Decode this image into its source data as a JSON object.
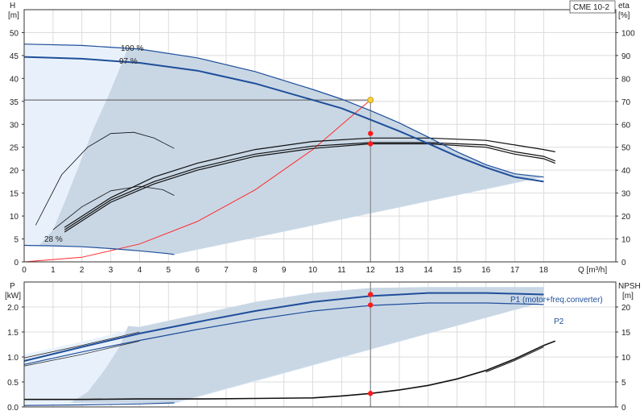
{
  "chart_data": [
    {
      "type": "line",
      "panel": "head",
      "title": "CME 10-2",
      "xlabel": "Q [m³/h]",
      "ylabel_left": "H",
      "ylabel_left_unit": "[m]",
      "ylabel_right": "eta",
      "ylabel_right_unit": "[%]",
      "xlim": [
        0,
        20.5
      ],
      "ylim_left": [
        0,
        55
      ],
      "ylim_right": [
        0,
        110
      ],
      "x_ticks": [
        0,
        1,
        2,
        3,
        4,
        5,
        6,
        7,
        8,
        9,
        10,
        11,
        12,
        13,
        14,
        15,
        16,
        17,
        18
      ],
      "y_ticks_left": [
        0,
        5,
        10,
        15,
        20,
        25,
        30,
        35,
        40,
        45,
        50
      ],
      "y_ticks_right": [
        0,
        10,
        20,
        30,
        40,
        50,
        60,
        70,
        80,
        90,
        100
      ],
      "grid": true,
      "curve_labels": [
        "100 %",
        "97 %",
        "28 %"
      ],
      "series": [
        {
          "name": "100 %",
          "x": [
            0,
            2,
            4,
            6,
            8,
            10,
            11,
            12,
            13,
            14,
            15,
            16,
            17,
            18
          ],
          "y": [
            47.5,
            47.2,
            46.4,
            44.5,
            41.5,
            37.6,
            35.5,
            33,
            30.3,
            27.2,
            24,
            21.2,
            19.2,
            18.5
          ]
        },
        {
          "name": "97 %",
          "x": [
            0,
            2,
            4,
            6,
            8,
            10,
            11,
            12,
            13,
            14,
            15,
            16,
            17,
            18
          ],
          "y": [
            44.7,
            44.3,
            43.4,
            41.7,
            38.9,
            35.3,
            33.5,
            31,
            28.5,
            25.8,
            23,
            20.6,
            18.5,
            17.5
          ]
        },
        {
          "name": "28 %",
          "x": [
            0,
            1,
            2,
            3,
            4,
            5,
            5.2
          ],
          "y": [
            3.6,
            3.5,
            3.3,
            2.9,
            2.4,
            1.8,
            1.6
          ]
        }
      ],
      "system_curve": {
        "x": [
          0,
          2,
          4,
          6,
          8,
          10,
          12
        ],
        "y": [
          0,
          1,
          3.9,
          8.8,
          15.7,
          24.5,
          35.3
        ]
      },
      "eta_curves": [
        {
          "x": [
            0.4,
            1.3,
            2.2,
            3.0,
            3.8,
            4.5,
            5.2
          ],
          "y": [
            16,
            38,
            50,
            56,
            56.5,
            54,
            49.5
          ]
        },
        {
          "x": [
            1,
            2,
            3,
            4,
            4.8,
            5.2
          ],
          "y": [
            14,
            24,
            31,
            33,
            31.5,
            29
          ]
        },
        {
          "x": [
            1.4,
            3,
            4.5,
            6,
            8,
            10,
            12,
            14,
            16,
            17,
            18,
            18.4
          ],
          "y": [
            15,
            28,
            37,
            43,
            49,
            52.5,
            54,
            54,
            53,
            51,
            49,
            48
          ]
        },
        {
          "x": [
            1.4,
            3,
            4.5,
            6,
            8,
            10,
            12,
            14,
            16,
            17,
            18,
            18.4
          ],
          "y": [
            14,
            27,
            35,
            41,
            47,
            50.5,
            52,
            52,
            51,
            48,
            46,
            44
          ]
        },
        {
          "x": [
            1.4,
            3,
            4.5,
            6,
            8,
            10,
            12,
            14,
            16,
            17,
            18,
            18.4
          ],
          "y": [
            13,
            26,
            34,
            40,
            46,
            49.5,
            51.5,
            51.5,
            50,
            47,
            45,
            43
          ]
        }
      ],
      "duty_point": {
        "x": 12,
        "y": 35.3
      },
      "eta_points": [
        {
          "x": 12,
          "y": 56
        },
        {
          "x": 12,
          "y": 51.5
        }
      ]
    },
    {
      "type": "line",
      "panel": "power",
      "xlim": [
        0,
        20.5
      ],
      "ylabel_left": "P",
      "ylabel_left_unit": "[kW]",
      "ylabel_right": "NPSH",
      "ylabel_right_unit": "[m]",
      "ylim_left": [
        0,
        2.5
      ],
      "ylim_right": [
        0,
        25
      ],
      "y_ticks_left": [
        0.0,
        0.5,
        1.0,
        1.5,
        2.0
      ],
      "y_ticks_left_labels": [
        "0.0",
        "0.5",
        "1.0",
        "1.5",
        "2.0"
      ],
      "y_ticks_right": [
        0,
        5,
        10,
        15,
        20
      ],
      "grid": true,
      "series": [
        {
          "name": "P1 (motor+freq.converter)",
          "x": [
            0,
            2,
            4,
            6,
            8,
            10,
            12,
            14,
            16,
            18
          ],
          "y": [
            0.92,
            1.2,
            1.47,
            1.7,
            1.92,
            2.1,
            2.22,
            2.28,
            2.28,
            2.25
          ]
        },
        {
          "name": "P2",
          "x": [
            0,
            2,
            4,
            6,
            8,
            10,
            12,
            14,
            16,
            18
          ],
          "y": [
            0.85,
            1.1,
            1.33,
            1.55,
            1.75,
            1.92,
            2.03,
            2.08,
            2.08,
            2.05
          ]
        }
      ],
      "npsh": {
        "x": [
          0,
          2,
          4,
          6,
          8,
          10,
          11,
          12,
          13,
          14,
          15,
          16,
          17,
          18,
          18.4
        ],
        "y": [
          1.5,
          1.5,
          1.6,
          1.6,
          1.7,
          1.8,
          2.2,
          2.7,
          3.4,
          4.3,
          5.6,
          7.3,
          9.6,
          12.3,
          13.2
        ]
      },
      "power_points": [
        {
          "x": 12,
          "y": 2.25
        },
        {
          "x": 12,
          "y": 2.04
        }
      ],
      "npsh_point": {
        "x": 12,
        "y": 2.7
      }
    }
  ],
  "theme": {
    "envelope_light": "#e8f1fb",
    "envelope_mid": "#c9d7e5",
    "curve_blue": "#1f4e9a",
    "system_red": "#ff2a2a",
    "duty_yellow": "#ffd23c",
    "grid": "#dcdcdc"
  }
}
